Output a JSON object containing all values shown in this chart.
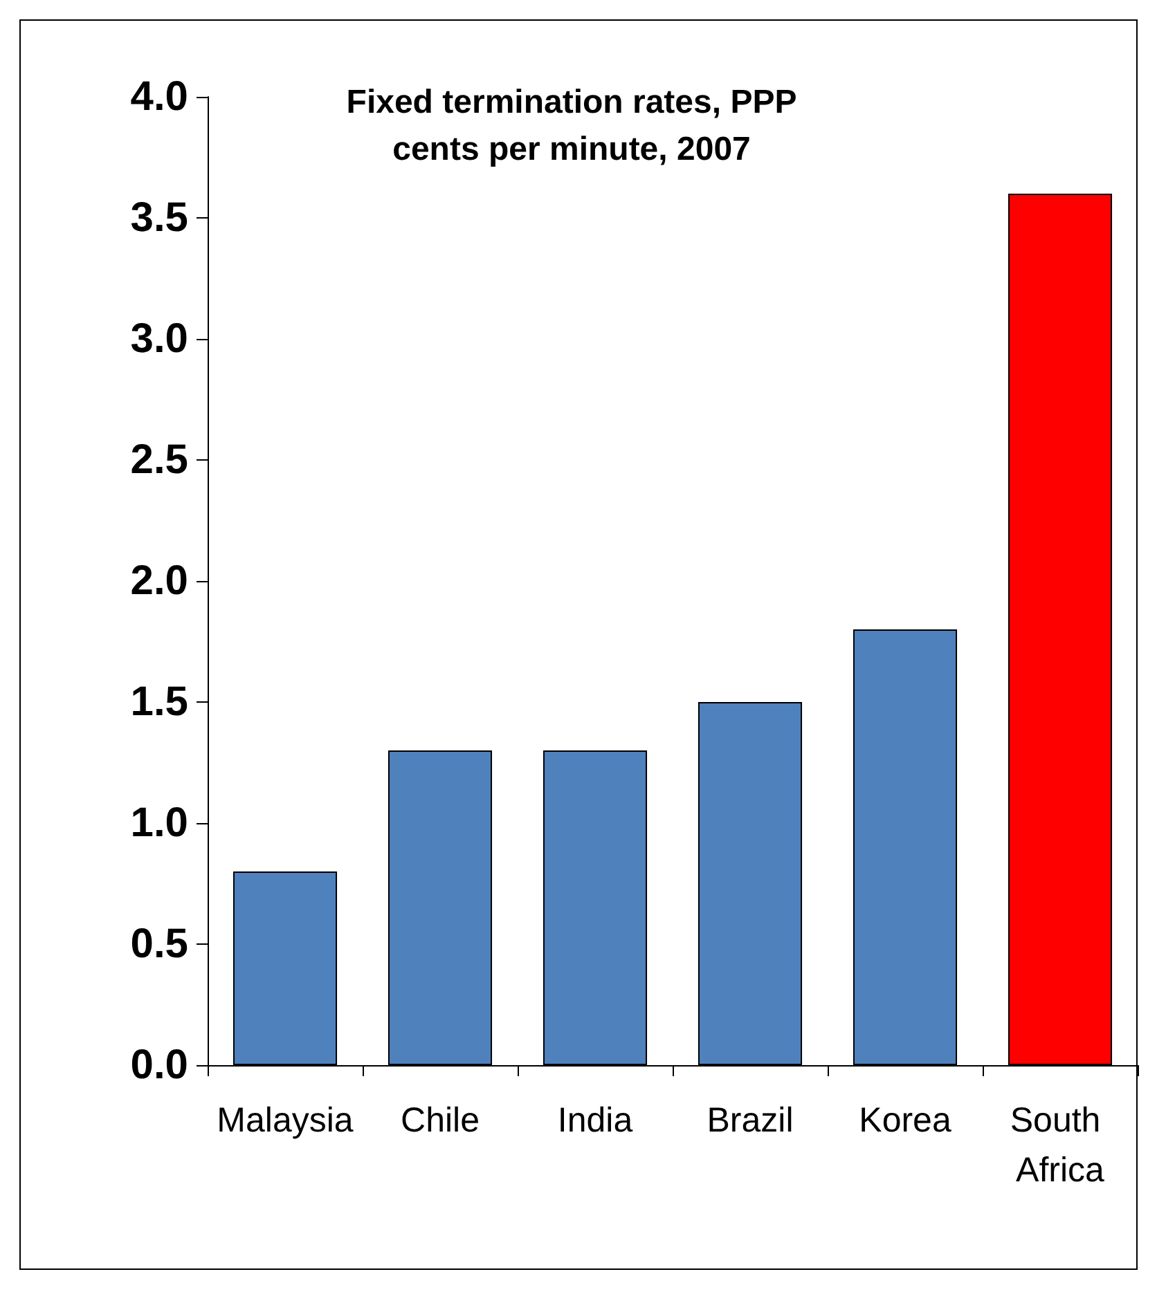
{
  "chart_data": {
    "type": "bar",
    "title": "Fixed termination rates, PPP\ncents per minute, 2007",
    "categories": [
      "Malaysia",
      "Chile",
      "India",
      "Brazil",
      "Korea",
      "South Africa"
    ],
    "values": [
      0.8,
      1.3,
      1.3,
      1.5,
      1.8,
      3.6
    ],
    "colors": [
      "#4f81bd",
      "#4f81bd",
      "#4f81bd",
      "#4f81bd",
      "#4f81bd",
      "#ff0000"
    ],
    "ylim": [
      0,
      4
    ],
    "yticks": [
      {
        "value": 0,
        "label": "0.0"
      },
      0.5,
      {
        "value": 1,
        "label": "1.0"
      },
      1.5,
      {
        "value": 2,
        "label": "2.0"
      },
      2.5,
      {
        "value": 3,
        "label": "3.0"
      },
      3.5,
      {
        "value": 4,
        "label": "4.0"
      }
    ],
    "grid": false
  }
}
